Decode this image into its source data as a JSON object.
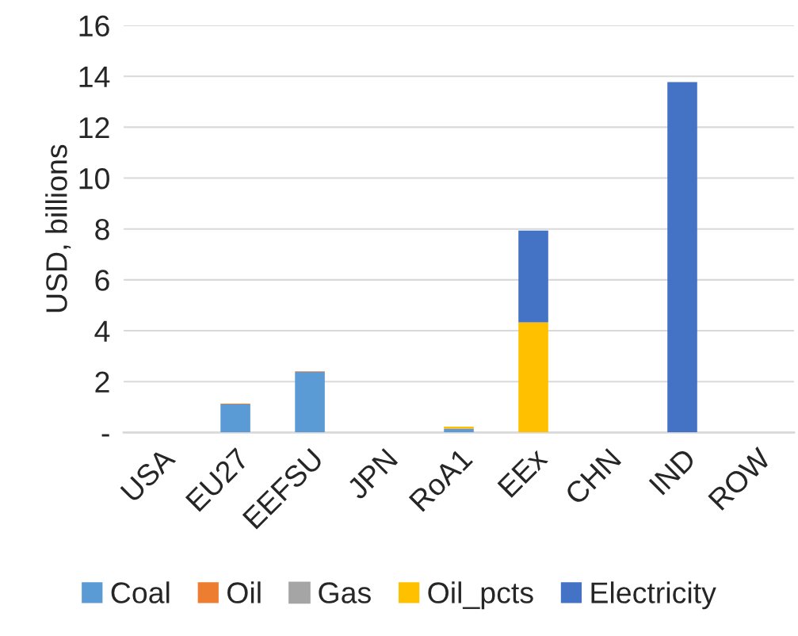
{
  "chart_data": {
    "type": "bar",
    "stacked": true,
    "ylabel": "USD, billions",
    "categories": [
      "USA",
      "EU27",
      "EEFSU",
      "JPN",
      "RoA1",
      "EEx",
      "CHN",
      "IND",
      "ROW"
    ],
    "series": [
      {
        "name": "Coal",
        "color": "#5b9bd5",
        "values": [
          null,
          1.1,
          2.38,
          null,
          0.14,
          null,
          null,
          null,
          null
        ]
      },
      {
        "name": "Oil",
        "color": "#ed7d31",
        "values": [
          null,
          0.03,
          0.02,
          null,
          0.02,
          null,
          null,
          null,
          null
        ]
      },
      {
        "name": "Gas",
        "color": "#a5a5a5",
        "values": [
          null,
          null,
          null,
          null,
          null,
          null,
          null,
          null,
          null
        ]
      },
      {
        "name": "Oil_pcts",
        "color": "#ffc000",
        "values": [
          null,
          null,
          null,
          null,
          0.07,
          4.33,
          null,
          null,
          null
        ]
      },
      {
        "name": "Electricity",
        "color": "#4472c4",
        "values": [
          null,
          null,
          null,
          null,
          null,
          3.61,
          null,
          13.77,
          null
        ]
      }
    ],
    "ylim": [
      0,
      16
    ],
    "yticks": [
      {
        "value": 0,
        "label": "-"
      },
      2,
      4,
      6,
      8,
      10,
      12,
      14,
      16
    ],
    "grid": "y",
    "legend": "bottom"
  }
}
